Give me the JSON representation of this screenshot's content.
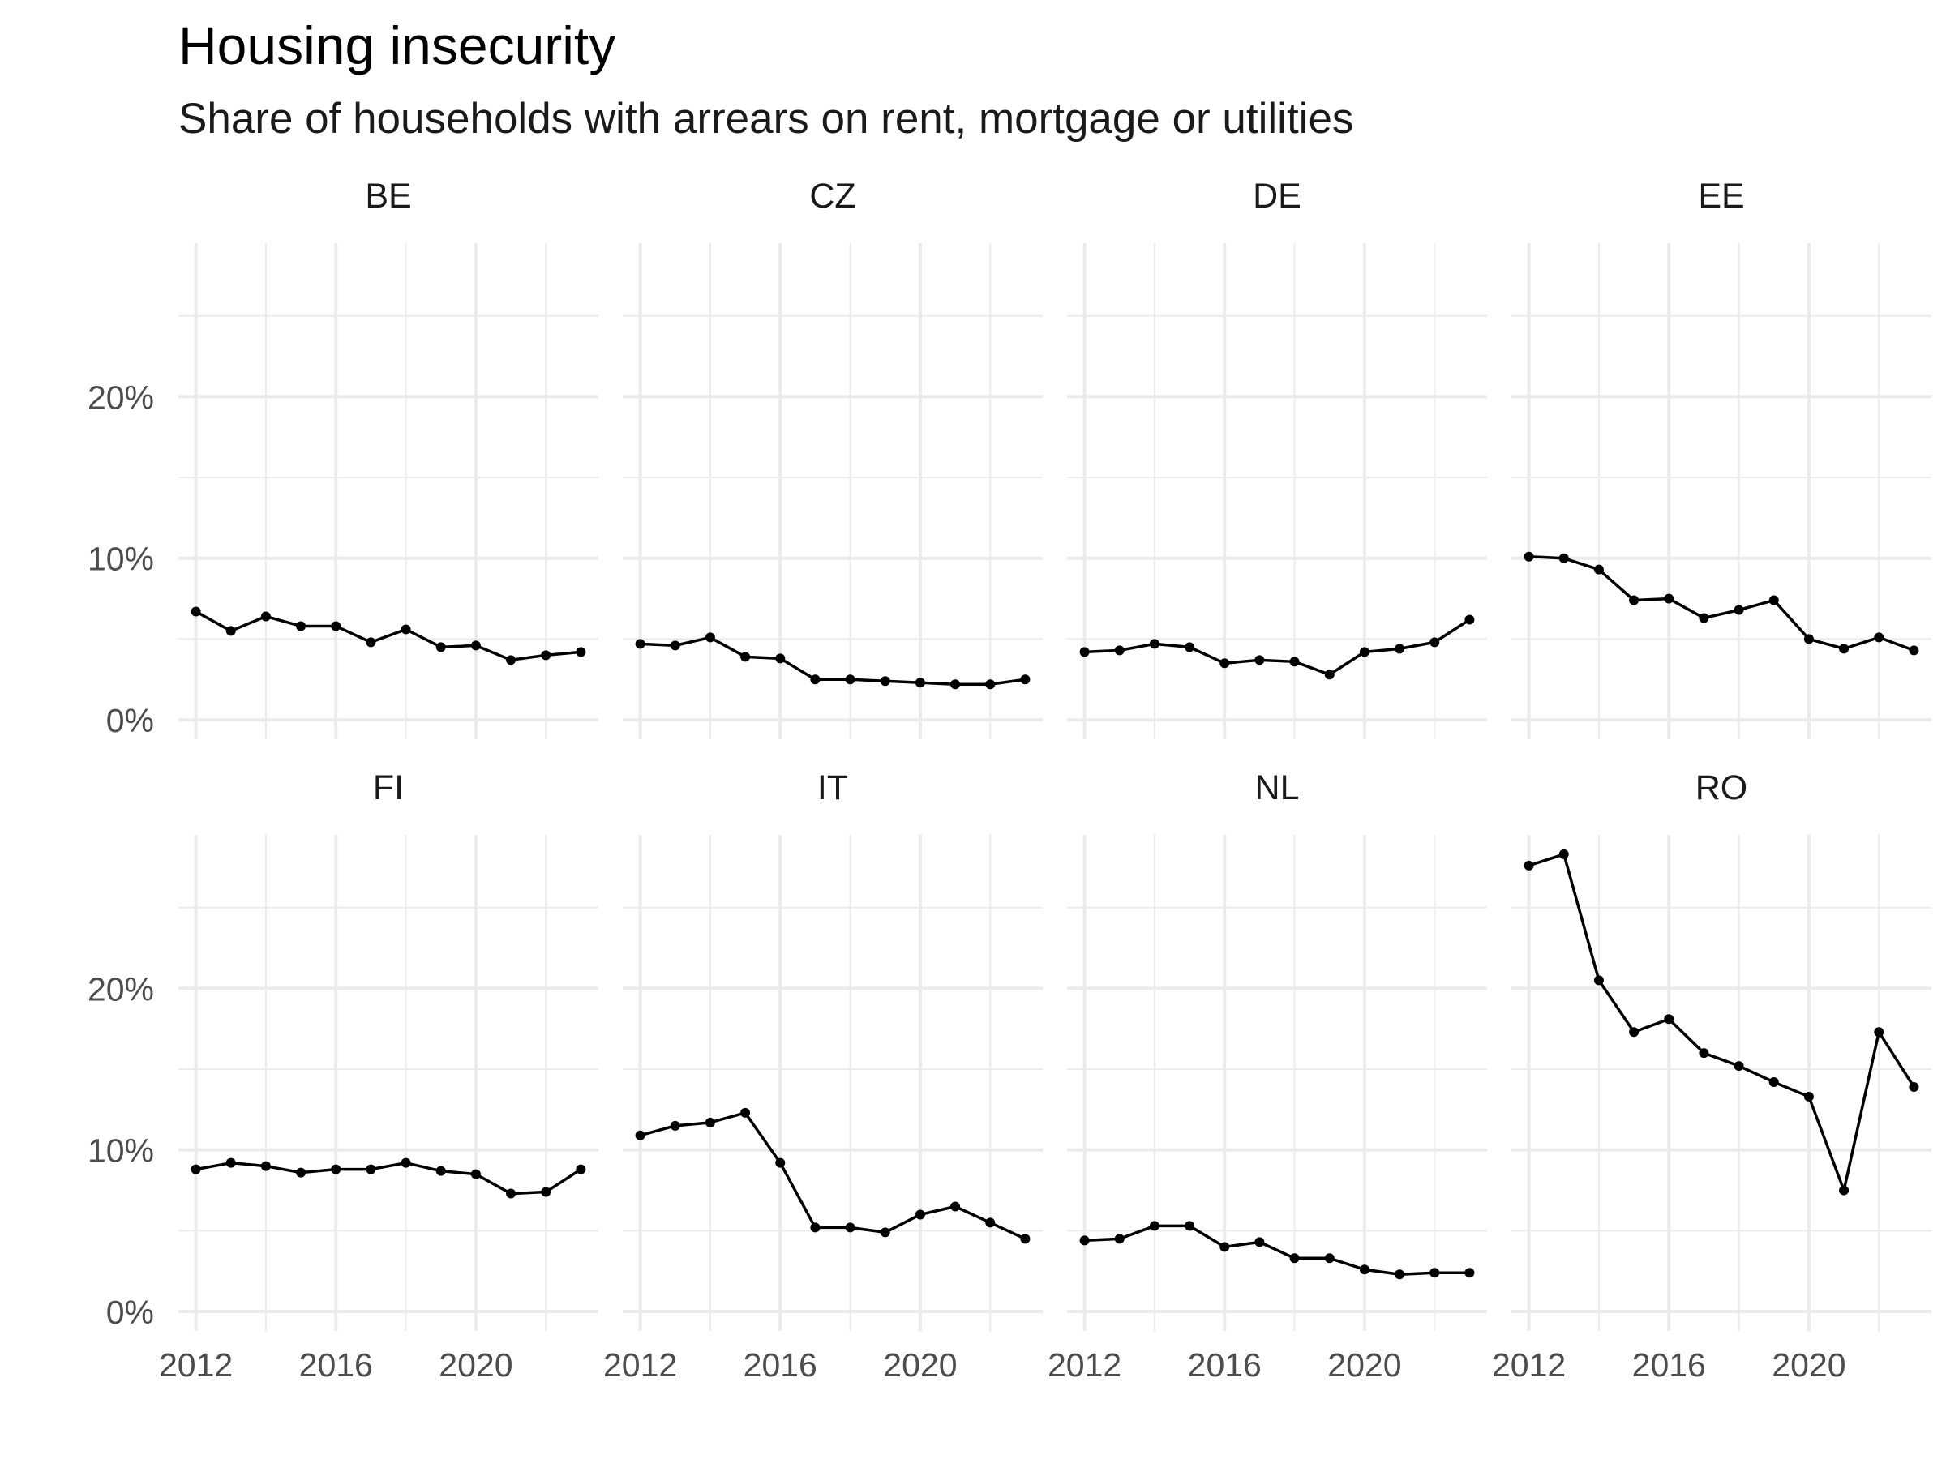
{
  "chart_data": {
    "type": "line",
    "title": "Housing insecurity",
    "subtitle": "Share of households with arrears on rent, mortgage or utilities",
    "xlabel": "",
    "ylabel": "",
    "x": [
      2012,
      2013,
      2014,
      2015,
      2016,
      2017,
      2018,
      2019,
      2020,
      2021,
      2022,
      2023
    ],
    "x_ticks": [
      "2012",
      "2016",
      "2020"
    ],
    "y_ticks": [
      "0%",
      "10%",
      "20%"
    ],
    "xlim": [
      2011.5,
      2023.5
    ],
    "ylim": [
      -1.2,
      29.5
    ],
    "grid": true,
    "facets": [
      {
        "name": "BE",
        "values": [
          6.7,
          5.5,
          6.4,
          5.8,
          5.8,
          4.8,
          5.6,
          4.5,
          4.6,
          3.7,
          4.0,
          4.2
        ]
      },
      {
        "name": "CZ",
        "values": [
          4.7,
          4.6,
          5.1,
          3.9,
          3.8,
          2.5,
          2.5,
          2.4,
          2.3,
          2.2,
          2.2,
          2.5
        ]
      },
      {
        "name": "DE",
        "values": [
          4.2,
          4.3,
          4.7,
          4.5,
          3.5,
          3.7,
          3.6,
          2.8,
          4.2,
          4.4,
          4.8,
          6.2
        ]
      },
      {
        "name": "EE",
        "values": [
          10.1,
          10.0,
          9.3,
          7.4,
          7.5,
          6.3,
          6.8,
          7.4,
          5.0,
          4.4,
          5.1,
          4.3
        ]
      },
      {
        "name": "FI",
        "values": [
          8.8,
          9.2,
          9.0,
          8.6,
          8.8,
          8.8,
          9.2,
          8.7,
          8.5,
          7.3,
          7.4,
          8.8
        ]
      },
      {
        "name": "IT",
        "values": [
          10.9,
          11.5,
          11.7,
          12.3,
          9.2,
          5.2,
          5.2,
          4.9,
          6.0,
          6.5,
          5.5,
          4.5
        ]
      },
      {
        "name": "NL",
        "values": [
          4.4,
          4.5,
          5.3,
          5.3,
          4.0,
          4.3,
          3.3,
          3.3,
          2.6,
          2.3,
          2.4,
          2.4
        ]
      },
      {
        "name": "RO",
        "values": [
          27.6,
          28.3,
          20.5,
          17.3,
          18.1,
          16.0,
          15.2,
          14.2,
          13.3,
          7.5,
          17.3,
          13.9
        ]
      }
    ]
  }
}
